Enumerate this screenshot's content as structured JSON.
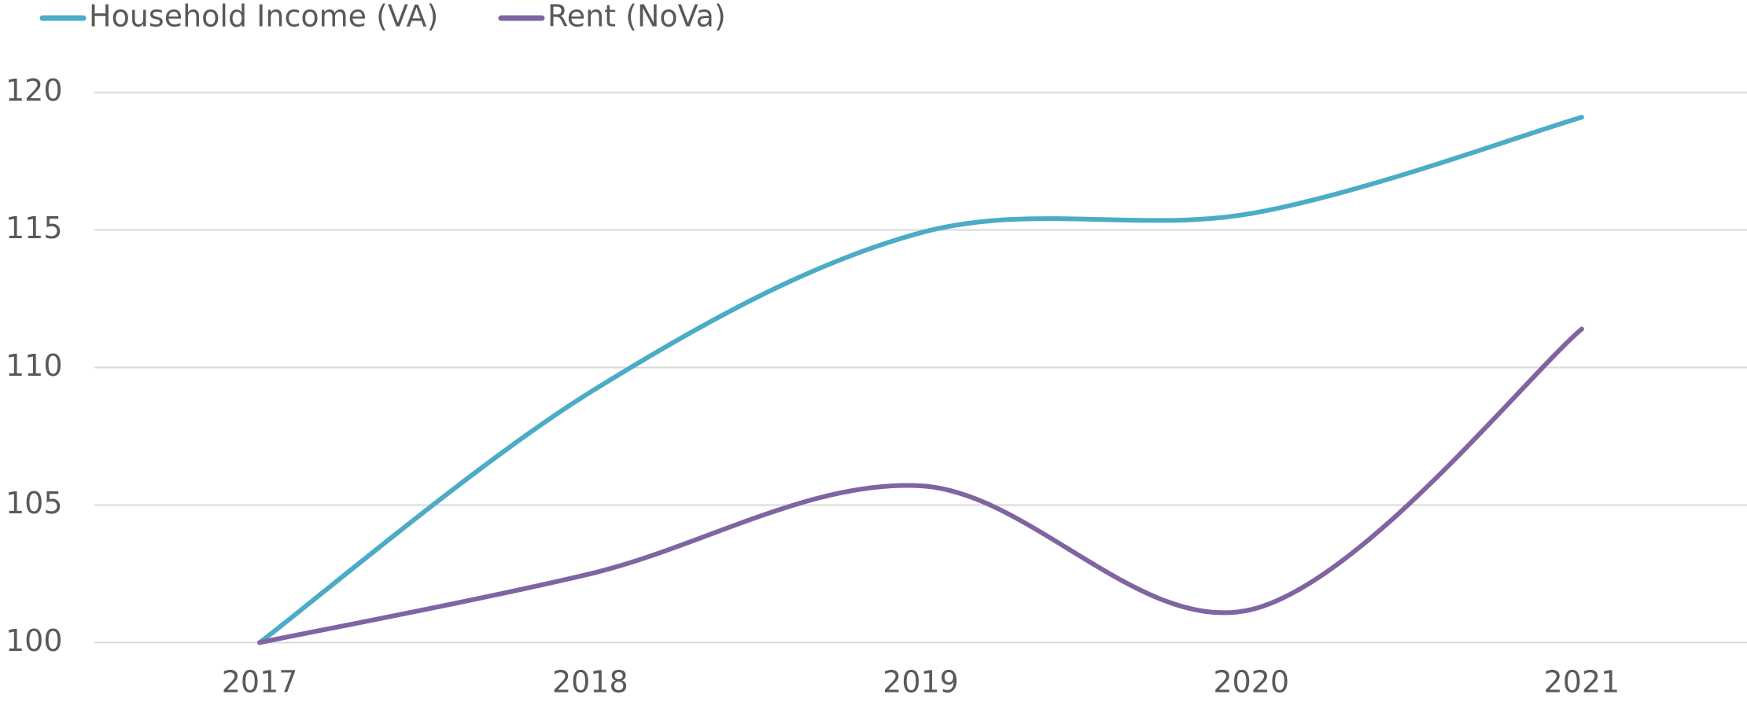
{
  "chart_data": {
    "type": "line",
    "categories": [
      "2017",
      "2018",
      "2019",
      "2020",
      "2021"
    ],
    "series": [
      {
        "name": "Household Income (VA)",
        "color": "#4bacc6",
        "values": [
          100,
          109.1,
          114.9,
          115.6,
          119.1
        ]
      },
      {
        "name": "Rent (NoVa)",
        "color": "#8064a2",
        "values": [
          100,
          102.5,
          105.7,
          101.2,
          111.4
        ]
      }
    ],
    "ylim": [
      100,
      120
    ],
    "yticks": [
      100,
      105,
      110,
      115,
      120
    ],
    "grid": true,
    "smooth": true,
    "legend": "top"
  }
}
